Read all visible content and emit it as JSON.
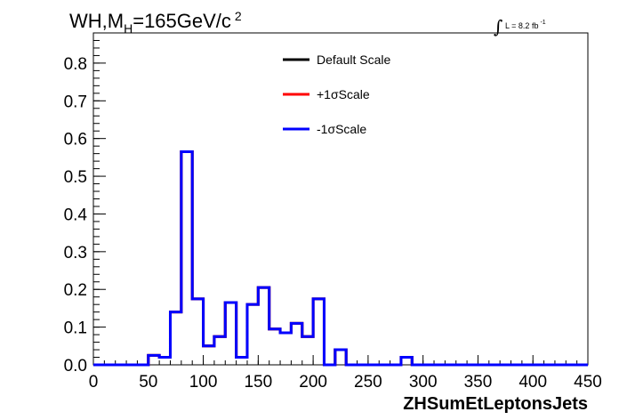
{
  "title": {
    "main_a": "WH,M",
    "sub": "H",
    "main_b": "=165GeV/c",
    "sup": "2"
  },
  "luminosity": {
    "integral_symbol": "∫",
    "text": "L = 8.2 fb",
    "sup": "-1"
  },
  "legend": [
    {
      "label": "Default Scale",
      "color": "#000000"
    },
    {
      "label": "+1σScale",
      "color": "#ff0000"
    },
    {
      "label": "-1σScale",
      "color": "#0000ff"
    }
  ],
  "chart_data": {
    "type": "line",
    "step": true,
    "xlabel": "ZHSumEtLeptonsJets",
    "ylabel": "",
    "xlim": [
      0,
      450
    ],
    "ylim": [
      0,
      0.88
    ],
    "x_ticks": [
      "0",
      "50",
      "100",
      "150",
      "200",
      "250",
      "300",
      "350",
      "400",
      "450"
    ],
    "y_ticks": [
      "0.0",
      "0.1",
      "0.2",
      "0.3",
      "0.4",
      "0.5",
      "0.6",
      "0.7",
      "0.8"
    ],
    "bin_edges": [
      0,
      10,
      20,
      30,
      40,
      50,
      60,
      70,
      80,
      90,
      100,
      110,
      120,
      130,
      140,
      150,
      160,
      170,
      180,
      190,
      200,
      210,
      220,
      230,
      240,
      250,
      260,
      270,
      280,
      290,
      300,
      310,
      320,
      330,
      340,
      350,
      360,
      370,
      380,
      390,
      400,
      410,
      420,
      430,
      440,
      450
    ],
    "series": [
      {
        "name": "Default Scale",
        "color": "#000000",
        "values": [
          0,
          0,
          0,
          0,
          0,
          0.025,
          0.02,
          0.14,
          0.565,
          0.175,
          0.05,
          0.075,
          0.165,
          0.02,
          0.16,
          0.205,
          0.095,
          0.085,
          0.11,
          0.075,
          0.175,
          0,
          0.04,
          0,
          0,
          0,
          0,
          0,
          0.02,
          0,
          0,
          0,
          0,
          0,
          0,
          0,
          0,
          0,
          0,
          0,
          0,
          0,
          0,
          0,
          0
        ]
      },
      {
        "name": "+1σScale",
        "color": "#ff0000",
        "values": [
          0,
          0,
          0,
          0,
          0,
          0.025,
          0.02,
          0.14,
          0.565,
          0.175,
          0.05,
          0.075,
          0.165,
          0.02,
          0.16,
          0.205,
          0.095,
          0.085,
          0.11,
          0.075,
          0.175,
          0,
          0.04,
          0,
          0,
          0,
          0,
          0,
          0.02,
          0,
          0,
          0,
          0,
          0,
          0,
          0,
          0,
          0,
          0,
          0,
          0,
          0,
          0,
          0,
          0
        ]
      },
      {
        "name": "-1σScale",
        "color": "#0000ff",
        "values": [
          0,
          0,
          0,
          0,
          0,
          0.025,
          0.02,
          0.14,
          0.565,
          0.175,
          0.05,
          0.075,
          0.165,
          0.02,
          0.16,
          0.205,
          0.095,
          0.085,
          0.11,
          0.075,
          0.175,
          0,
          0.04,
          0,
          0,
          0,
          0,
          0,
          0.02,
          0,
          0,
          0,
          0,
          0,
          0,
          0,
          0,
          0,
          0,
          0,
          0,
          0,
          0,
          0,
          0
        ]
      }
    ]
  }
}
